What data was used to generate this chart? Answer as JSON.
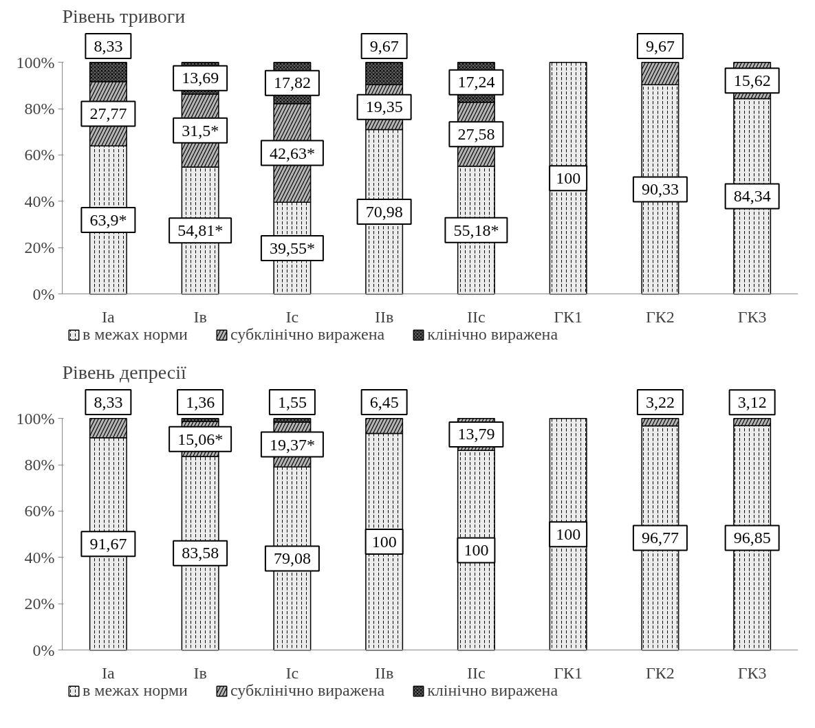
{
  "chart_data": [
    {
      "type": "bar",
      "title": "Рівень тривоги",
      "stacked": true,
      "legend": "bottom",
      "grid": false,
      "categories": [
        "Ia",
        "Iв",
        "Ic",
        "IIв",
        "IIc",
        "ГК1",
        "ГК2",
        "ГК3"
      ],
      "ylim": [
        0,
        100
      ],
      "yticks": [
        {
          "value": 0,
          "label": "0%"
        },
        {
          "value": 20,
          "label": "20%"
        },
        {
          "value": 40,
          "label": "40%"
        },
        {
          "value": 60,
          "label": "60%"
        },
        {
          "value": 80,
          "label": "80%"
        },
        {
          "value": 100,
          "label": "100%"
        }
      ],
      "series": [
        {
          "name": "в межах норми",
          "color": "#ececec",
          "values": [
            63.9,
            54.81,
            39.55,
            70.98,
            55.18,
            100,
            90.33,
            84.34
          ],
          "value_labels": [
            "63,9*",
            "54,81*",
            "39,55*",
            "70,98",
            "55,18*",
            "100",
            "90,33",
            "84,34"
          ]
        },
        {
          "name": "субклінічно виражена",
          "color": "#b4b4b4",
          "values": [
            27.77,
            31.5,
            42.63,
            19.35,
            27.58,
            null,
            9.67,
            15.62
          ],
          "value_labels": [
            "27,77",
            "31,5*",
            "42,63*",
            "19,35",
            "27,58",
            null,
            "9,67",
            "15,62"
          ]
        },
        {
          "name": "клінічно виражена",
          "color": "#5a5a5a",
          "values": [
            8.33,
            13.69,
            17.82,
            9.67,
            17.24,
            null,
            null,
            null
          ],
          "value_labels": [
            "8,33",
            "13,69",
            "17,82",
            "9,67",
            "17,24",
            null,
            null,
            null
          ]
        }
      ]
    },
    {
      "type": "bar",
      "title": "Рівень депресії",
      "stacked": true,
      "legend": "bottom",
      "grid": false,
      "annotations": [
        "100",
        "100"
      ],
      "categories": [
        "Ia",
        "Iв",
        "Ic",
        "IIв",
        "IIc",
        "ГК1",
        "ГК2",
        "ГК3"
      ],
      "ylim": [
        0,
        100
      ],
      "yticks": [
        {
          "value": 0,
          "label": "0%"
        },
        {
          "value": 20,
          "label": "20%"
        },
        {
          "value": 40,
          "label": "40%"
        },
        {
          "value": 60,
          "label": "60%"
        },
        {
          "value": 80,
          "label": "80%"
        },
        {
          "value": 100,
          "label": "100%"
        }
      ],
      "series": [
        {
          "name": "в межах норми",
          "color": "#ececec",
          "values": [
            91.67,
            83.58,
            79.08,
            93.55,
            86.21,
            100,
            96.77,
            96.85
          ],
          "value_labels": [
            "91,67",
            "83,58",
            "79,08",
            null,
            null,
            "100",
            "96,77",
            "96,85"
          ]
        },
        {
          "name": "субклінічно виражена",
          "color": "#b4b4b4",
          "values": [
            8.33,
            15.06,
            19.37,
            6.45,
            13.79,
            null,
            3.22,
            3.12
          ],
          "value_labels": [
            "8,33",
            "15,06*",
            "19,37*",
            "6,45",
            "13,79",
            null,
            "3,22",
            "3,12"
          ]
        },
        {
          "name": "клінічно виражена",
          "color": "#5a5a5a",
          "values": [
            null,
            1.36,
            1.55,
            null,
            null,
            null,
            null,
            null
          ],
          "value_labels": [
            null,
            "1,36",
            "1,55",
            null,
            null,
            null,
            null,
            null
          ]
        }
      ]
    }
  ]
}
